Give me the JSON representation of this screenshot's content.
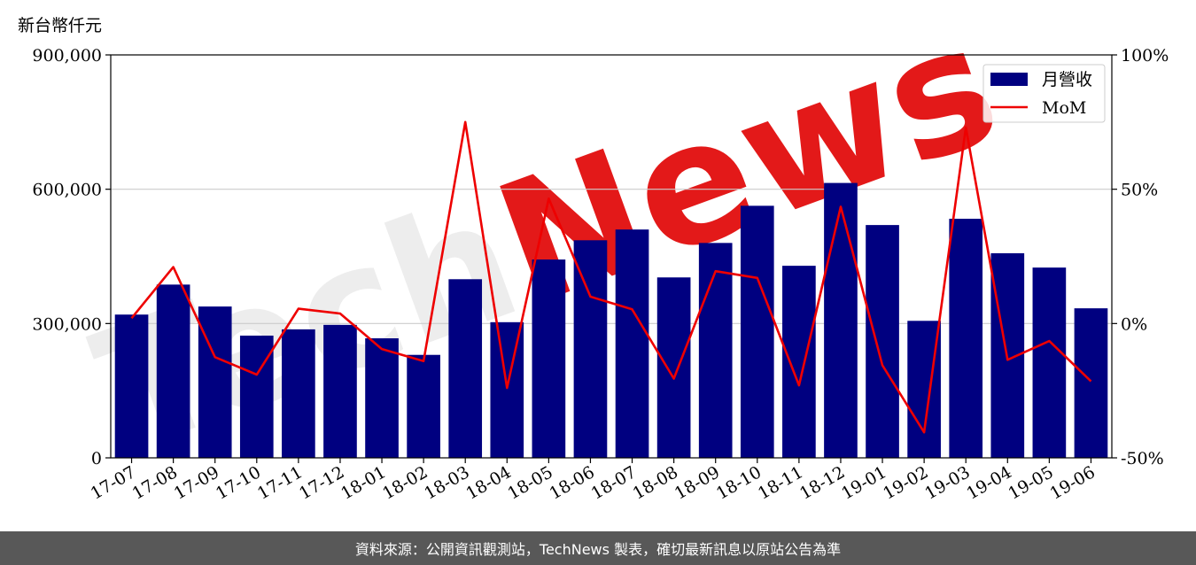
{
  "chart_data": {
    "type": "bar",
    "unit_label": "新台幣仟元",
    "categories": [
      "17-07",
      "17-08",
      "17-09",
      "17-10",
      "17-11",
      "17-12",
      "18-01",
      "18-02",
      "18-03",
      "18-04",
      "18-05",
      "18-06",
      "18-07",
      "18-08",
      "18-09",
      "18-10",
      "18-11",
      "18-12",
      "19-01",
      "19-02",
      "19-03",
      "19-04",
      "19-05",
      "19-06"
    ],
    "series": [
      {
        "name": "月營收",
        "type": "bar",
        "axis": "left",
        "color": "#000080",
        "values": [
          320000,
          387000,
          338000,
          273000,
          287000,
          297000,
          267000,
          230000,
          399000,
          303000,
          443000,
          486000,
          510000,
          403000,
          480000,
          563000,
          429000,
          614000,
          520000,
          306000,
          534000,
          457000,
          425000,
          334000
        ]
      },
      {
        "name": "MoM",
        "type": "line",
        "axis": "right",
        "color": "#ee0000",
        "values": [
          2,
          21,
          -12.5,
          -19,
          5.5,
          3.7,
          -9.5,
          -14,
          75,
          -24,
          46.5,
          10,
          5.3,
          -20.5,
          19.5,
          17,
          -23,
          43.5,
          -15.5,
          -40.5,
          73,
          -13.5,
          -6.5,
          -21.5
        ]
      }
    ],
    "ylim_left": [
      0,
      900000
    ],
    "ylim_right": [
      -50,
      100
    ],
    "yticks_left": [
      "0",
      "300,000",
      "600,000",
      "900,000"
    ],
    "yticks_right": [
      "-50%",
      "0%",
      "50%",
      "100%"
    ],
    "grid": "horizontal",
    "legend_position": "top-right",
    "watermark": "TechNews"
  },
  "footer": {
    "text": "資料來源：公開資訊觀測站，TechNews 製表，確切最新訊息以原站公告為準"
  }
}
